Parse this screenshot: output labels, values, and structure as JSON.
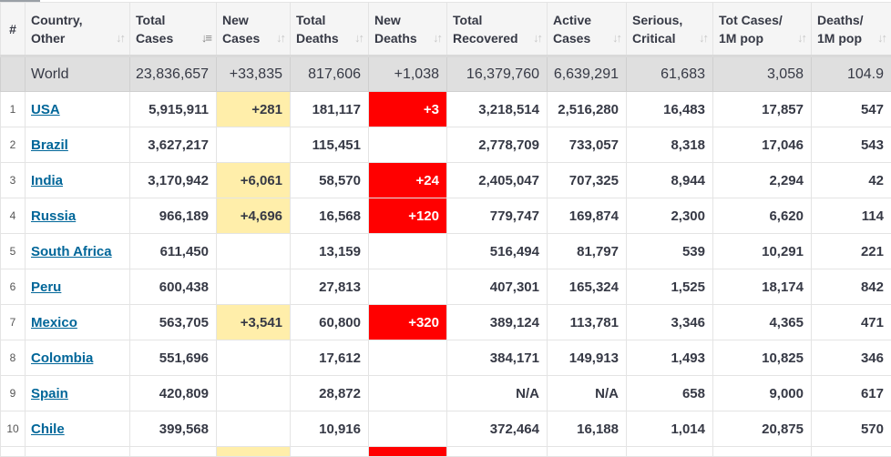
{
  "headers": [
    {
      "line1": "#",
      "line2": "",
      "sorted": false,
      "sort_icon": "none"
    },
    {
      "line1": "Country,",
      "line2": "Other",
      "sorted": false,
      "sort_icon": "sort-icon"
    },
    {
      "line1": "Total",
      "line2": "Cases",
      "sorted": true,
      "sort_icon": "sort-desc-icon"
    },
    {
      "line1": "New",
      "line2": "Cases",
      "sorted": false,
      "sort_icon": "sort-icon"
    },
    {
      "line1": "Total",
      "line2": "Deaths",
      "sorted": false,
      "sort_icon": "sort-icon"
    },
    {
      "line1": "New",
      "line2": "Deaths",
      "sorted": false,
      "sort_icon": "sort-icon"
    },
    {
      "line1": "Total",
      "line2": "Recovered",
      "sorted": false,
      "sort_icon": "sort-icon"
    },
    {
      "line1": "Active",
      "line2": "Cases",
      "sorted": false,
      "sort_icon": "sort-icon"
    },
    {
      "line1": "Serious,",
      "line2": "Critical",
      "sorted": false,
      "sort_icon": "sort-icon"
    },
    {
      "line1": "Tot Cases/",
      "line2": "1M pop",
      "sorted": false,
      "sort_icon": "sort-icon"
    },
    {
      "line1": "Deaths/",
      "line2": "1M pop",
      "sorted": false,
      "sort_icon": "sort-icon"
    }
  ],
  "world": {
    "idx": "",
    "country": "World",
    "total_cases": "23,836,657",
    "new_cases": "+33,835",
    "total_deaths": "817,606",
    "new_deaths": "+1,038",
    "total_recovered": "16,379,760",
    "active_cases": "6,639,291",
    "serious": "61,683",
    "cases_per_1m": "3,058",
    "deaths_per_1m": "104.9"
  },
  "rows": [
    {
      "idx": "1",
      "country": "USA",
      "total_cases": "5,915,911",
      "new_cases": "+281",
      "total_deaths": "181,117",
      "new_deaths": "+3",
      "total_recovered": "3,218,514",
      "active_cases": "2,516,280",
      "serious": "16,483",
      "cases_per_1m": "17,857",
      "deaths_per_1m": "547"
    },
    {
      "idx": "2",
      "country": "Brazil",
      "total_cases": "3,627,217",
      "new_cases": "",
      "total_deaths": "115,451",
      "new_deaths": "",
      "total_recovered": "2,778,709",
      "active_cases": "733,057",
      "serious": "8,318",
      "cases_per_1m": "17,046",
      "deaths_per_1m": "543"
    },
    {
      "idx": "3",
      "country": "India",
      "total_cases": "3,170,942",
      "new_cases": "+6,061",
      "total_deaths": "58,570",
      "new_deaths": "+24",
      "total_recovered": "2,405,047",
      "active_cases": "707,325",
      "serious": "8,944",
      "cases_per_1m": "2,294",
      "deaths_per_1m": "42"
    },
    {
      "idx": "4",
      "country": "Russia",
      "total_cases": "966,189",
      "new_cases": "+4,696",
      "total_deaths": "16,568",
      "new_deaths": "+120",
      "total_recovered": "779,747",
      "active_cases": "169,874",
      "serious": "2,300",
      "cases_per_1m": "6,620",
      "deaths_per_1m": "114"
    },
    {
      "idx": "5",
      "country": "South Africa",
      "total_cases": "611,450",
      "new_cases": "",
      "total_deaths": "13,159",
      "new_deaths": "",
      "total_recovered": "516,494",
      "active_cases": "81,797",
      "serious": "539",
      "cases_per_1m": "10,291",
      "deaths_per_1m": "221"
    },
    {
      "idx": "6",
      "country": "Peru",
      "total_cases": "600,438",
      "new_cases": "",
      "total_deaths": "27,813",
      "new_deaths": "",
      "total_recovered": "407,301",
      "active_cases": "165,324",
      "serious": "1,525",
      "cases_per_1m": "18,174",
      "deaths_per_1m": "842"
    },
    {
      "idx": "7",
      "country": "Mexico",
      "total_cases": "563,705",
      "new_cases": "+3,541",
      "total_deaths": "60,800",
      "new_deaths": "+320",
      "total_recovered": "389,124",
      "active_cases": "113,781",
      "serious": "3,346",
      "cases_per_1m": "4,365",
      "deaths_per_1m": "471"
    },
    {
      "idx": "8",
      "country": "Colombia",
      "total_cases": "551,696",
      "new_cases": "",
      "total_deaths": "17,612",
      "new_deaths": "",
      "total_recovered": "384,171",
      "active_cases": "149,913",
      "serious": "1,493",
      "cases_per_1m": "10,825",
      "deaths_per_1m": "346"
    },
    {
      "idx": "9",
      "country": "Spain",
      "total_cases": "420,809",
      "new_cases": "",
      "total_deaths": "28,872",
      "new_deaths": "",
      "total_recovered": "N/A",
      "active_cases": "N/A",
      "serious": "658",
      "cases_per_1m": "9,000",
      "deaths_per_1m": "617"
    },
    {
      "idx": "10",
      "country": "Chile",
      "total_cases": "399,568",
      "new_cases": "",
      "total_deaths": "10,916",
      "new_deaths": "",
      "total_recovered": "372,464",
      "active_cases": "16,188",
      "serious": "1,014",
      "cases_per_1m": "20,875",
      "deaths_per_1m": "570"
    }
  ],
  "colors": {
    "new_cases_highlight": "#ffeeaa",
    "new_deaths_highlight": "#ff0000",
    "link": "#006699",
    "world_row_bg": "#dfdfdf",
    "header_bg": "#f5f5f5"
  }
}
